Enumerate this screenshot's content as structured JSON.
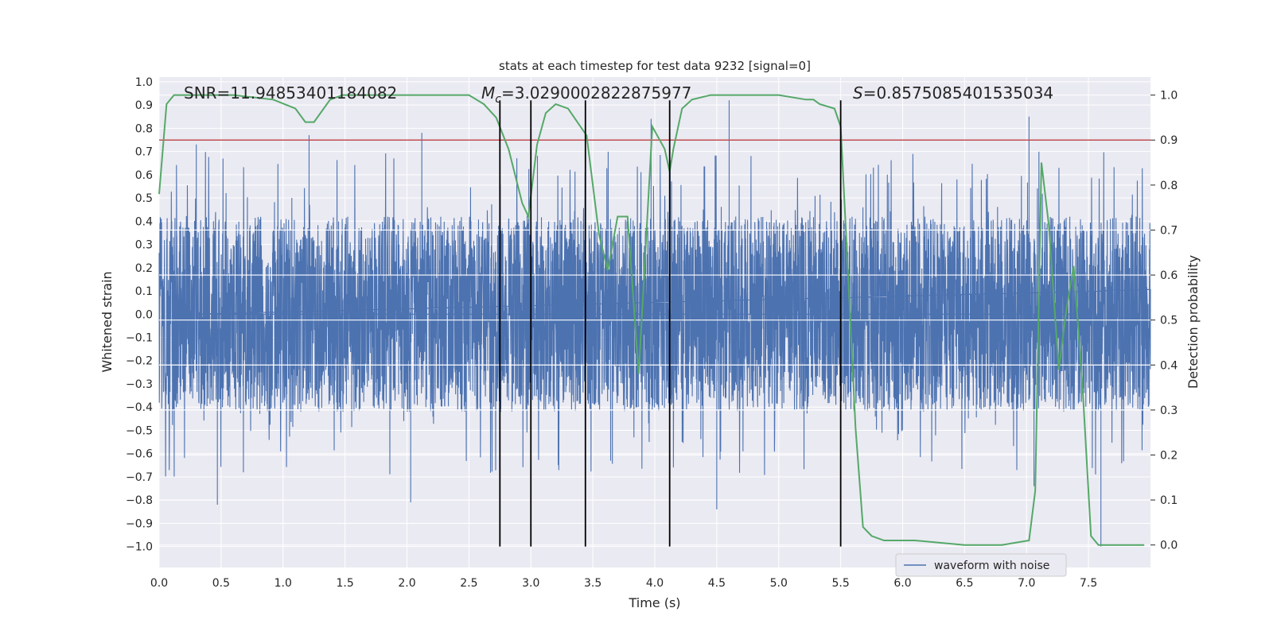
{
  "chart_data": {
    "type": "line",
    "title": "stats at each timestep for test data 9232 [signal=0]",
    "xlabel": "Time (s)",
    "ylabel_left": "Whitened strain",
    "ylabel_right": "Detection probability",
    "xlim": [
      0,
      8
    ],
    "ylim_left": [
      -1.09,
      1.02
    ],
    "ylim_right": [
      -0.05,
      1.04
    ],
    "x_ticks": [
      "0.0",
      "0.5",
      "1.0",
      "1.5",
      "2.0",
      "2.5",
      "3.0",
      "3.5",
      "4.0",
      "4.5",
      "5.0",
      "5.5",
      "6.0",
      "6.5",
      "7.0",
      "7.5"
    ],
    "y_left_ticks": [
      "1.0",
      "0.9",
      "0.8",
      "0.7",
      "0.6",
      "0.5",
      "0.4",
      "0.3",
      "0.2",
      "0.1",
      "0.0",
      "-0.1",
      "-0.2",
      "-0.3",
      "-0.4",
      "-0.5",
      "-0.6",
      "-0.7",
      "-0.8",
      "-0.9",
      "-1.0"
    ],
    "y_right_ticks": [
      "1.0",
      "0.9",
      "0.8",
      "0.7",
      "0.6",
      "0.5",
      "0.4",
      "0.3",
      "0.2",
      "0.1",
      "0.0"
    ],
    "annotations": {
      "snr": "SNR=11.94853401184082",
      "mc_symbol": "M",
      "mc_sub": "c",
      "mc_value": "=3.0290002822875977",
      "s_symbol": "S",
      "s_value": "=0.8575085401535034"
    },
    "legend": {
      "position": "lower right",
      "entries": [
        "waveform with noise"
      ]
    },
    "threshold_line": {
      "axis": "right",
      "y": 0.9,
      "color": "#c44e52"
    },
    "vertical_lines": {
      "x": [
        2.75,
        3.0,
        3.44,
        4.12,
        5.5
      ],
      "y_range": [
        -1.0,
        0.92
      ],
      "color": "#000000"
    },
    "series": [
      {
        "name": "waveform with noise",
        "axis": "left",
        "color": "#4c72b0",
        "style": "noisy_strain",
        "amplitude_dense": [
          -0.42,
          0.42
        ],
        "notable_peaks": [
          {
            "x": 0.3,
            "y": 0.73
          },
          {
            "x": 1.21,
            "y": 0.77
          },
          {
            "x": 2.12,
            "y": 0.78
          },
          {
            "x": 3.97,
            "y": 0.84
          },
          {
            "x": 4.6,
            "y": 0.92
          },
          {
            "x": 7.02,
            "y": 0.85
          },
          {
            "x": 0.47,
            "y": -0.82
          },
          {
            "x": 2.03,
            "y": -0.81
          },
          {
            "x": 4.5,
            "y": -0.84
          },
          {
            "x": 7.6,
            "y": -1.0
          },
          {
            "x": 7.06,
            "y": -0.74
          }
        ]
      },
      {
        "name": "detection probability",
        "axis": "right",
        "color": "#55a868",
        "x": [
          0.0,
          0.06,
          0.12,
          0.3,
          0.6,
          0.92,
          1.1,
          1.18,
          1.25,
          1.38,
          1.48,
          1.6,
          2.0,
          2.2,
          2.5,
          2.62,
          2.72,
          2.82,
          2.93,
          2.98,
          3.05,
          3.12,
          3.2,
          3.3,
          3.45,
          3.55,
          3.62,
          3.7,
          3.78,
          3.87,
          3.98,
          4.08,
          4.12,
          4.15,
          4.22,
          4.3,
          4.45,
          4.6,
          5.0,
          5.22,
          5.28,
          5.33,
          5.45,
          5.5,
          5.56,
          5.62,
          5.68,
          5.75,
          5.85,
          6.0,
          6.1,
          6.5,
          6.8,
          7.02,
          7.07,
          7.12,
          7.18,
          7.26,
          7.32,
          7.38,
          7.45,
          7.52,
          7.58,
          7.95
        ],
        "y": [
          0.78,
          0.98,
          1.0,
          1.0,
          1.0,
          0.99,
          0.97,
          0.94,
          0.94,
          0.99,
          1.0,
          1.0,
          1.0,
          1.0,
          1.0,
          0.98,
          0.95,
          0.88,
          0.76,
          0.73,
          0.89,
          0.96,
          0.98,
          0.97,
          0.91,
          0.69,
          0.61,
          0.73,
          0.73,
          0.38,
          0.93,
          0.88,
          0.83,
          0.88,
          0.97,
          0.99,
          1.0,
          1.0,
          1.0,
          0.99,
          0.99,
          0.98,
          0.97,
          0.93,
          0.6,
          0.26,
          0.04,
          0.02,
          0.01,
          0.01,
          0.01,
          0.0,
          0.0,
          0.01,
          0.12,
          0.85,
          0.71,
          0.39,
          0.52,
          0.62,
          0.36,
          0.02,
          0.0,
          0.0
        ]
      }
    ]
  }
}
